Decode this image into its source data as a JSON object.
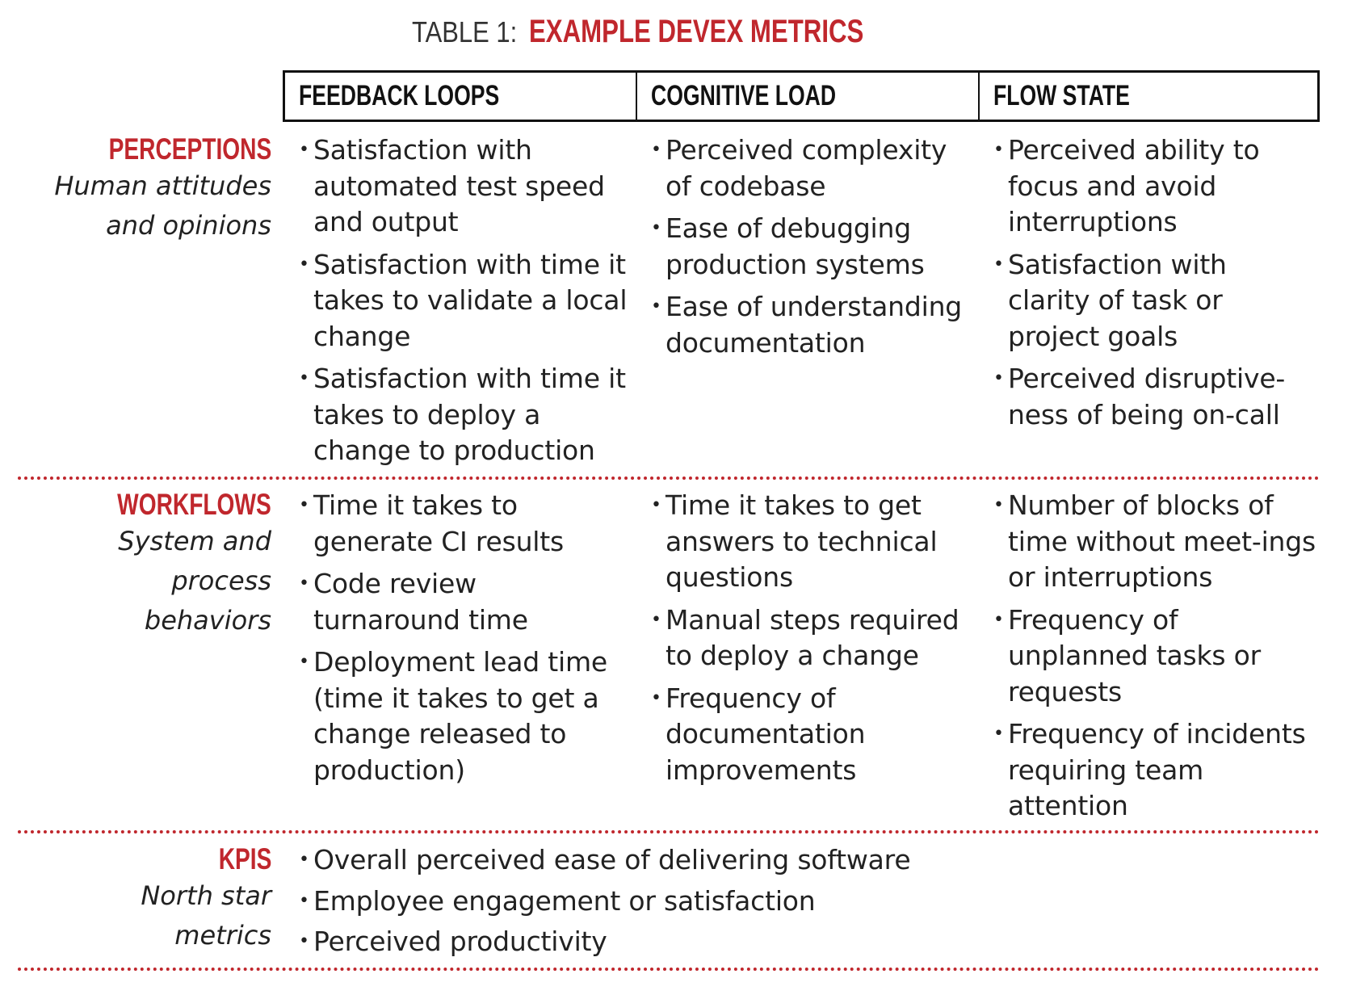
{
  "title": {
    "prefix": "TABLE 1: ",
    "main": "EXAMPLE DEVEX METRICS"
  },
  "columns": [
    "FEEDBACK LOOPS",
    "COGNITIVE LOAD",
    "FLOW STATE"
  ],
  "rows": [
    {
      "label": "PERCEPTIONS",
      "sublabel_lines": [
        "Human attitudes",
        "and opinions"
      ],
      "cells": [
        [
          "Satisfaction with automated test  speed and output",
          "Satisfaction with time it takes to validate a local change",
          "Satisfaction with time it takes to deploy a change to production"
        ],
        [
          "Perceived complexity of codebase",
          "Ease of debugging production systems",
          "Ease of understanding documentation"
        ],
        [
          "Perceived ability to focus and avoid interruptions",
          "Satisfaction with clarity of task or project goals",
          "Perceived disruptive-ness of being on-call"
        ]
      ]
    },
    {
      "label": "WORKFLOWS",
      "sublabel_lines": [
        "System and",
        "process",
        "behaviors"
      ],
      "cells": [
        [
          "Time it takes to generate CI results",
          "Code review turnaround time",
          "Deployment lead time (time it takes to get a change released to production)"
        ],
        [
          "Time it takes to get answers to technical questions",
          "Manual steps required to deploy a change",
          "Frequency of documentation improvements"
        ],
        [
          "Number of blocks of time without meet-ings or interruptions",
          "Frequency of unplanned tasks or requests",
          "Frequency of incidents requiring team attention"
        ]
      ]
    },
    {
      "label": "KPIS",
      "sublabel_lines": [
        "North star",
        "metrics"
      ],
      "items": [
        "Overall perceived ease of delivering software",
        "Employee engagement or satisfaction",
        "Perceived productivity"
      ]
    }
  ],
  "colors": {
    "accent": "#c0272d",
    "text": "#222222",
    "rule": "#111111"
  }
}
